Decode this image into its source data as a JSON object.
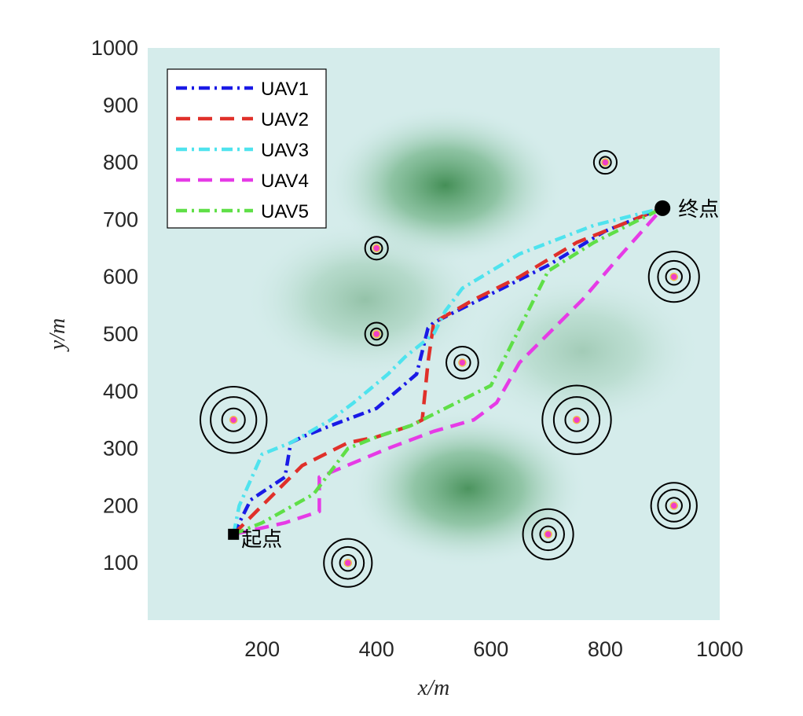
{
  "chart_data": {
    "type": "line",
    "xlabel": "x/m",
    "ylabel": "y/m",
    "xlim": [
      0,
      1000
    ],
    "ylim": [
      0,
      1000
    ],
    "x_ticks": [
      200,
      400,
      600,
      800,
      1000
    ],
    "y_ticks": [
      100,
      200,
      300,
      400,
      500,
      600,
      700,
      800,
      900,
      1000
    ],
    "grid": false,
    "legend_position": "top-left",
    "start": {
      "label": "起点",
      "x": 150,
      "y": 150,
      "marker": "square"
    },
    "goal": {
      "label": "终点",
      "x": 900,
      "y": 720,
      "marker": "circle"
    },
    "terrain": {
      "description_color": "#3d8a4f",
      "peaks": [
        {
          "x": 520,
          "y": 760,
          "strength": 1.0
        },
        {
          "x": 560,
          "y": 230,
          "strength": 0.95
        },
        {
          "x": 380,
          "y": 560,
          "strength": 0.45
        },
        {
          "x": 760,
          "y": 470,
          "strength": 0.35
        }
      ]
    },
    "threats": [
      {
        "x": 150,
        "y": 350,
        "rings": [
          20,
          40,
          58
        ]
      },
      {
        "x": 400,
        "y": 650,
        "rings": [
          10,
          20
        ]
      },
      {
        "x": 400,
        "y": 500,
        "rings": [
          10,
          20
        ]
      },
      {
        "x": 550,
        "y": 450,
        "rings": [
          14,
          28
        ]
      },
      {
        "x": 750,
        "y": 350,
        "rings": [
          20,
          40,
          60
        ]
      },
      {
        "x": 800,
        "y": 800,
        "rings": [
          10,
          20
        ]
      },
      {
        "x": 920,
        "y": 600,
        "rings": [
          14,
          28,
          44
        ]
      },
      {
        "x": 920,
        "y": 200,
        "rings": [
          14,
          28,
          40
        ]
      },
      {
        "x": 700,
        "y": 150,
        "rings": [
          14,
          28,
          44
        ]
      },
      {
        "x": 350,
        "y": 100,
        "rings": [
          14,
          28,
          42
        ]
      }
    ],
    "series": [
      {
        "name": "UAV1",
        "color": "#1a1ae6",
        "dash": "dashdot",
        "points": [
          [
            150,
            150
          ],
          [
            180,
            210
          ],
          [
            240,
            250
          ],
          [
            250,
            310
          ],
          [
            270,
            320
          ],
          [
            320,
            340
          ],
          [
            400,
            370
          ],
          [
            470,
            430
          ],
          [
            490,
            510
          ],
          [
            500,
            520
          ],
          [
            560,
            550
          ],
          [
            620,
            580
          ],
          [
            700,
            620
          ],
          [
            800,
            680
          ],
          [
            900,
            720
          ]
        ]
      },
      {
        "name": "UAV2",
        "color": "#e0302a",
        "dash": "dashed",
        "points": [
          [
            150,
            150
          ],
          [
            200,
            200
          ],
          [
            260,
            260
          ],
          [
            270,
            270
          ],
          [
            300,
            285
          ],
          [
            350,
            310
          ],
          [
            400,
            320
          ],
          [
            460,
            340
          ],
          [
            480,
            350
          ],
          [
            485,
            400
          ],
          [
            490,
            450
          ],
          [
            500,
            520
          ],
          [
            570,
            560
          ],
          [
            650,
            600
          ],
          [
            750,
            660
          ],
          [
            900,
            720
          ]
        ]
      },
      {
        "name": "UAV3",
        "color": "#4fe3ee",
        "dash": "dashdot",
        "points": [
          [
            150,
            150
          ],
          [
            160,
            200
          ],
          [
            200,
            290
          ],
          [
            250,
            310
          ],
          [
            320,
            350
          ],
          [
            360,
            380
          ],
          [
            420,
            430
          ],
          [
            450,
            460
          ],
          [
            500,
            500
          ],
          [
            520,
            540
          ],
          [
            550,
            580
          ],
          [
            650,
            640
          ],
          [
            780,
            690
          ],
          [
            900,
            720
          ]
        ]
      },
      {
        "name": "UAV4",
        "color": "#e63be6",
        "dash": "dashed",
        "points": [
          [
            150,
            150
          ],
          [
            240,
            170
          ],
          [
            300,
            190
          ],
          [
            300,
            250
          ],
          [
            420,
            300
          ],
          [
            500,
            330
          ],
          [
            570,
            350
          ],
          [
            610,
            380
          ],
          [
            650,
            450
          ],
          [
            700,
            500
          ],
          [
            760,
            560
          ],
          [
            820,
            630
          ],
          [
            900,
            720
          ]
        ]
      },
      {
        "name": "UAV5",
        "color": "#5fdf47",
        "dash": "dashdot",
        "points": [
          [
            150,
            150
          ],
          [
            200,
            170
          ],
          [
            290,
            220
          ],
          [
            350,
            300
          ],
          [
            400,
            320
          ],
          [
            460,
            340
          ],
          [
            500,
            360
          ],
          [
            600,
            410
          ],
          [
            610,
            430
          ],
          [
            660,
            530
          ],
          [
            700,
            610
          ],
          [
            780,
            660
          ],
          [
            900,
            720
          ]
        ]
      }
    ]
  }
}
